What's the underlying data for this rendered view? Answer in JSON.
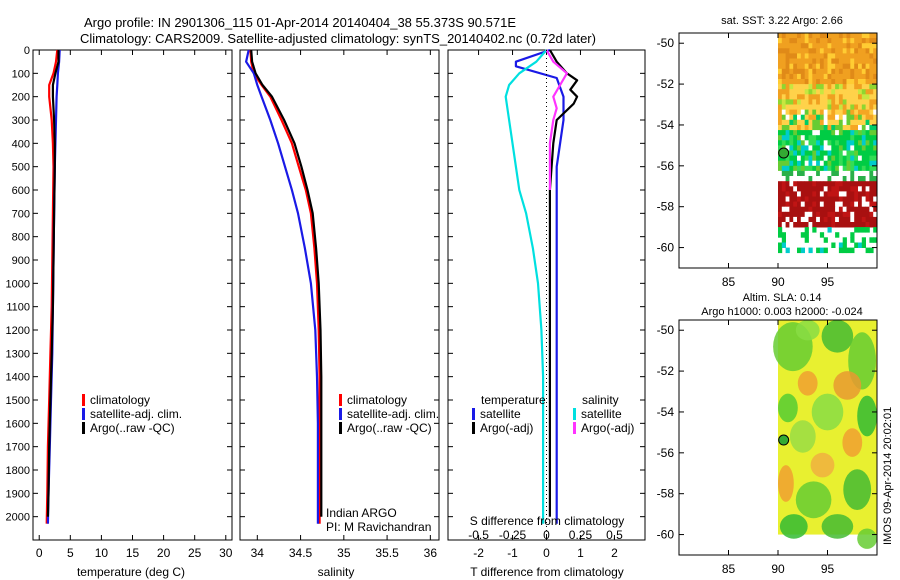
{
  "header": {
    "line1": "Argo profile: IN 2901306_115 01-Apr-2014 20140404_38 55.373S 90.571E",
    "line2": "Climatology: CARS2009. Satellite-adjusted climatology: synTS_20140402.nc (0.72d later)"
  },
  "footer_vertical": "IMOS 09-Apr-2014 20:02:01",
  "colors": {
    "climatology": "#ff0000",
    "satellite": "#1a1ae6",
    "argo": "#000000",
    "s_satellite": "#00e0e0",
    "s_argo": "#ff33ff"
  },
  "chart_data": [
    {
      "type": "line",
      "panel": "temperature",
      "xlabel": "temperature (deg C)",
      "ylabel": "",
      "xlim": [
        -1,
        31
      ],
      "ylim": [
        2100,
        0
      ],
      "xticks": [
        0,
        5,
        10,
        15,
        20,
        25,
        30
      ],
      "yticks": [
        0,
        100,
        200,
        300,
        400,
        500,
        600,
        700,
        800,
        900,
        1000,
        1100,
        1200,
        1300,
        1400,
        1500,
        1600,
        1700,
        1800,
        1900,
        2000
      ],
      "legend": [
        "climatology",
        "satellite-adj. clim.",
        "Argo(..raw -QC)"
      ],
      "series": [
        {
          "name": "climatology",
          "color": "#ff0000",
          "x": [
            2.9,
            2.7,
            2.3,
            1.6,
            1.6,
            2.0,
            2.2,
            2.3,
            2.2,
            2.1,
            2.0,
            1.8,
            1.6,
            1.4,
            1.3,
            1.2
          ],
          "y": [
            0,
            50,
            100,
            150,
            200,
            300,
            400,
            500,
            700,
            900,
            1100,
            1300,
            1500,
            1700,
            1900,
            2030
          ]
        },
        {
          "name": "satellite-adj. clim.",
          "color": "#1a1ae6",
          "x": [
            3.3,
            3.2,
            3.0,
            2.9,
            2.8,
            2.7,
            2.6,
            2.5,
            2.4,
            2.3,
            2.2,
            2.1,
            1.9,
            1.7,
            1.5,
            1.4
          ],
          "y": [
            0,
            50,
            100,
            150,
            200,
            300,
            400,
            500,
            700,
            900,
            1100,
            1300,
            1500,
            1700,
            1900,
            2030
          ]
        },
        {
          "name": "Argo(..raw -QC)",
          "color": "#000000",
          "x": [
            3.1,
            3.1,
            2.6,
            2.2,
            2.2,
            2.4,
            2.5,
            2.5,
            2.4,
            2.3,
            2.2,
            2.0,
            1.8,
            1.6,
            1.5,
            1.4
          ],
          "y": [
            0,
            50,
            100,
            150,
            200,
            300,
            400,
            500,
            700,
            900,
            1100,
            1300,
            1500,
            1700,
            1900,
            2000
          ]
        }
      ]
    },
    {
      "type": "line",
      "panel": "salinity",
      "xlabel": "salinity",
      "xlim": [
        33.8,
        36.1
      ],
      "ylim": [
        2100,
        0
      ],
      "xticks": [
        34,
        34.5,
        35,
        35.5,
        36
      ],
      "legend": [
        "climatology",
        "satellite-adj. clim.",
        "Argo(..raw -QC)"
      ],
      "annotation": [
        "Indian ARGO",
        "PI: M Ravichandran"
      ],
      "series": [
        {
          "name": "climatology",
          "color": "#ff0000",
          "x": [
            33.92,
            33.93,
            33.96,
            34.05,
            34.15,
            34.28,
            34.4,
            34.48,
            34.56,
            34.62,
            34.66,
            34.69,
            34.71,
            34.72,
            34.72,
            34.72,
            34.72
          ],
          "y": [
            0,
            50,
            100,
            150,
            200,
            300,
            400,
            500,
            600,
            700,
            850,
            1000,
            1200,
            1400,
            1600,
            1800,
            2030
          ]
        },
        {
          "name": "satellite-adj. clim.",
          "color": "#1a1ae6",
          "x": [
            33.9,
            33.87,
            33.96,
            34.0,
            34.05,
            34.15,
            34.24,
            34.32,
            34.4,
            34.47,
            34.55,
            34.62,
            34.67,
            34.69,
            34.7,
            34.7,
            34.7
          ],
          "y": [
            0,
            50,
            100,
            150,
            200,
            300,
            400,
            500,
            600,
            700,
            850,
            1000,
            1200,
            1400,
            1600,
            1800,
            2030
          ]
        },
        {
          "name": "Argo(..raw -QC)",
          "color": "#000000",
          "x": [
            33.93,
            33.94,
            33.98,
            34.06,
            34.17,
            34.31,
            34.43,
            34.51,
            34.58,
            34.64,
            34.68,
            34.71,
            34.73,
            34.74,
            34.74,
            34.74,
            34.74
          ],
          "y": [
            0,
            50,
            100,
            150,
            200,
            300,
            400,
            500,
            600,
            700,
            850,
            1000,
            1200,
            1400,
            1600,
            1800,
            2000
          ]
        }
      ]
    },
    {
      "type": "line",
      "panel": "difference",
      "xlabel": "T difference from climatology",
      "top_xlabel": "S difference from climatology",
      "xlim": [
        -2.9,
        2.9
      ],
      "ylim": [
        2100,
        0
      ],
      "xticks": [
        -2,
        -1,
        0,
        1,
        2
      ],
      "top_xticks": [
        "-0.5",
        "-0.25",
        "0",
        "0.25",
        "0.5"
      ],
      "top_xtick_positions": [
        -2,
        -1,
        0,
        1,
        2
      ],
      "legend_groups": [
        {
          "title": "temperature",
          "items": [
            "satellite",
            "Argo(-adj)"
          ]
        },
        {
          "title": "salinity",
          "items": [
            "satellite",
            "Argo(-adj)"
          ]
        }
      ],
      "series": [
        {
          "name": "temperature satellite",
          "color": "#1a1ae6",
          "x": [
            0.1,
            -0.9,
            -0.9,
            0.3,
            0.5,
            0.5,
            0.4,
            0.3,
            0.3,
            0.3,
            0.3,
            0.3,
            0.3,
            0.3,
            0.3,
            0.3
          ],
          "y": [
            0,
            50,
            70,
            120,
            200,
            300,
            400,
            500,
            700,
            900,
            1100,
            1300,
            1500,
            1700,
            1900,
            2030
          ]
        },
        {
          "name": "temperature Argo(-adj)",
          "color": "#000000",
          "x": [
            0.1,
            0.3,
            0.6,
            0.9,
            0.7,
            0.9,
            0.8,
            0.3,
            0.2,
            0.1,
            0.1,
            0.1,
            0.1,
            0.1,
            0.1,
            0.1,
            0.1,
            0.1
          ],
          "y": [
            0,
            50,
            100,
            130,
            170,
            200,
            230,
            300,
            400,
            600,
            800,
            1000,
            1200,
            1400,
            1600,
            1800,
            1900,
            2000
          ]
        },
        {
          "name": "salinity satellite",
          "color": "#00e0e0",
          "x": [
            0.0,
            -0.3,
            -0.8,
            -1.1,
            -1.2,
            -1.1,
            -1.0,
            -0.9,
            -0.8,
            -0.6,
            -0.4,
            -0.25,
            -0.15,
            -0.1,
            -0.1,
            -0.1,
            -0.1
          ],
          "y": [
            0,
            50,
            100,
            150,
            200,
            300,
            400,
            500,
            600,
            700,
            850,
            1000,
            1200,
            1400,
            1600,
            1800,
            2030
          ]
        },
        {
          "name": "salinity Argo(-adj)",
          "color": "#ff33ff",
          "x": [
            0.0,
            0.2,
            0.6,
            0.4,
            0.2,
            0.3,
            0.2,
            0.1,
            0.1,
            0.1
          ],
          "y": [
            0,
            50,
            100,
            150,
            200,
            250,
            300,
            400,
            500,
            600
          ]
        }
      ]
    },
    {
      "type": "heatmap",
      "panel": "sst-map",
      "title": "sat. SST: 3.22  Argo: 2.66",
      "xlim": [
        80,
        100
      ],
      "ylim": [
        -61,
        -49.5
      ],
      "xticks": [
        85,
        90,
        95
      ],
      "yticks": [
        -50,
        -52,
        -54,
        -56,
        -58,
        -60
      ],
      "data_extent": {
        "lon": [
          90,
          100
        ],
        "lat": [
          -61,
          -49.5
        ]
      },
      "argo_marker": {
        "lon": 90.571,
        "lat": -55.373
      }
    },
    {
      "type": "heatmap",
      "panel": "sla-map",
      "title_lines": [
        "Altim. SLA: 0.14",
        "Argo h1000: 0.003 h2000: -0.024"
      ],
      "xlim": [
        80,
        100
      ],
      "ylim": [
        -61,
        -49.5
      ],
      "xticks": [
        85,
        90,
        95
      ],
      "yticks": [
        -50,
        -52,
        -54,
        -56,
        -58,
        -60
      ],
      "data_extent": {
        "lon": [
          90,
          100
        ],
        "lat": [
          -60,
          -49.5
        ]
      },
      "argo_marker": {
        "lon": 90.571,
        "lat": -55.373
      }
    }
  ]
}
